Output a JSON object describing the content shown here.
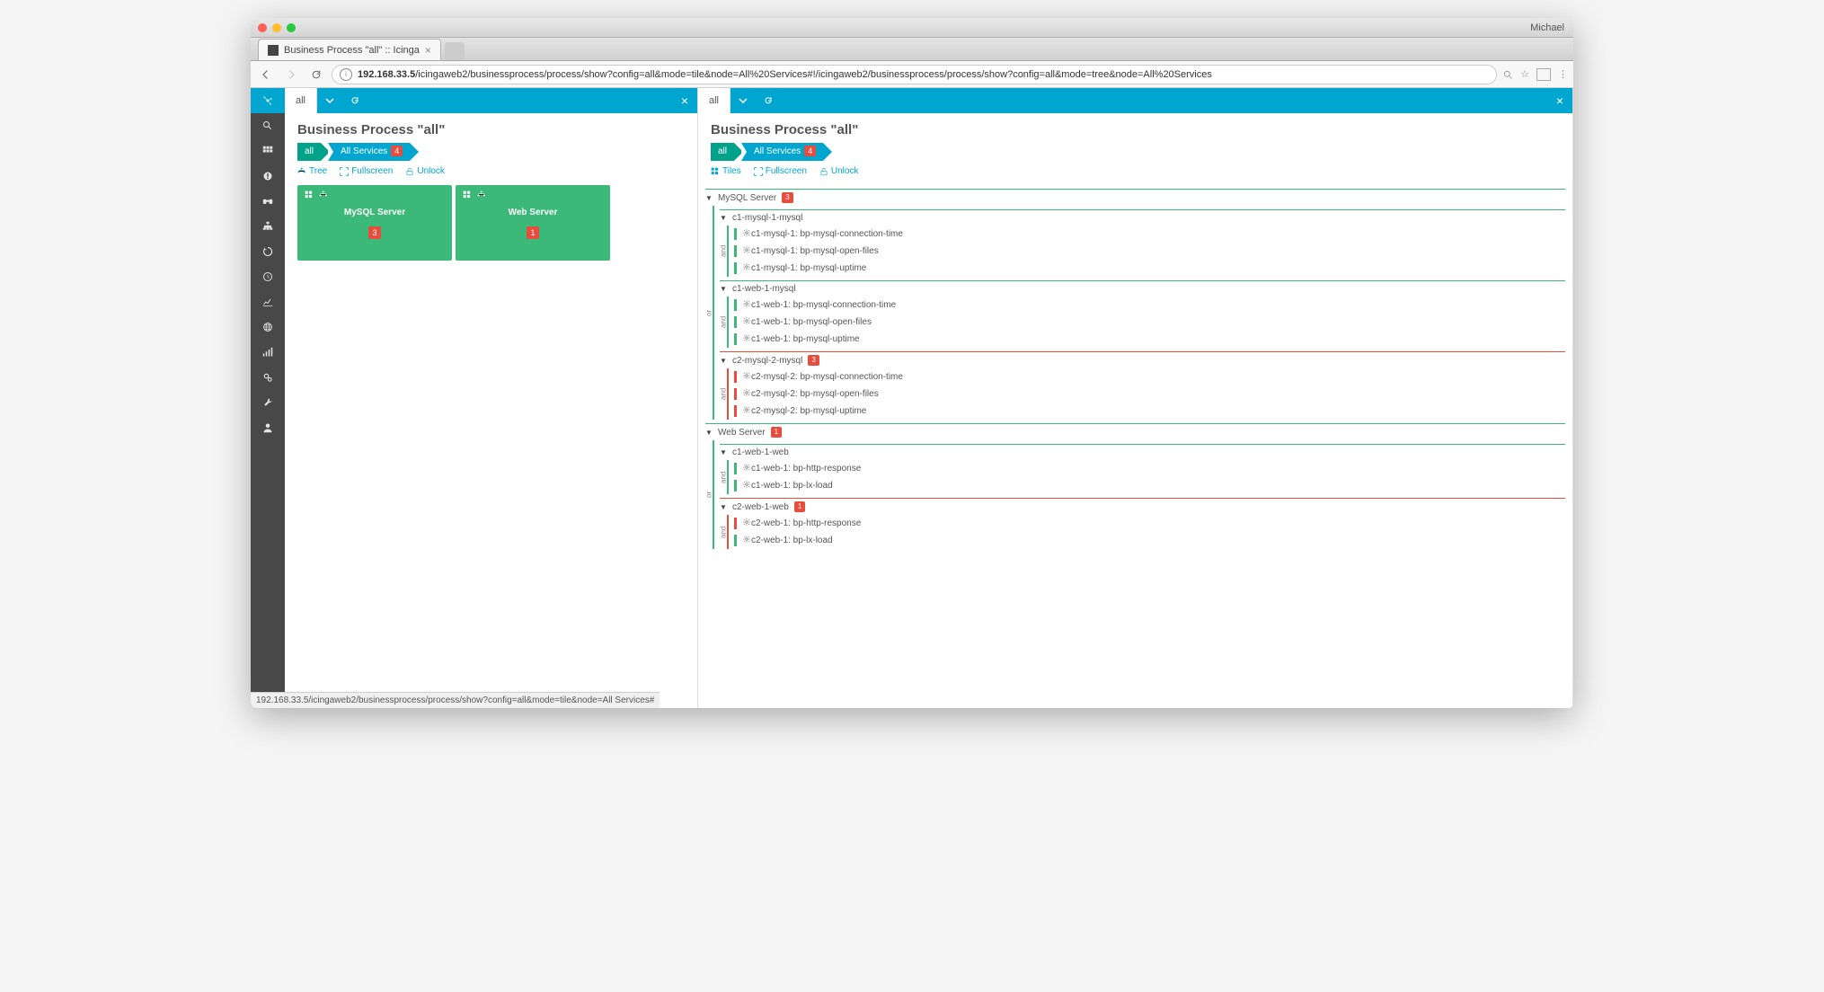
{
  "browser": {
    "user": "Michael",
    "tab_title": "Business Process \"all\" :: Icinga",
    "url_host": "192.168.33.5",
    "url_path": "/icingaweb2/businessprocess/process/show?config=all&mode=tile&node=All%20Services#!/icingaweb2/businessprocess/process/show?config=all&mode=tree&node=All%20Services",
    "status_text": "192.168.33.5/icingaweb2/businessprocess/process/show?config=all&mode=tile&node=All Services#"
  },
  "colors": {
    "brand": "#00a6cf",
    "ok": "#3cb878",
    "critical": "#e74c3c",
    "teal": "#00a38a",
    "sidebar": "#484848"
  },
  "panes": {
    "left": {
      "tab": "all",
      "title": "Business Process \"all\"",
      "crumbs": [
        {
          "label": "all",
          "style": "teal"
        },
        {
          "label": "All Services",
          "style": "blue",
          "badge": "4"
        }
      ],
      "actions": [
        {
          "icon": "tree",
          "label": "Tree"
        },
        {
          "icon": "fullscreen",
          "label": "Fullscreen"
        },
        {
          "icon": "unlock",
          "label": "Unlock"
        }
      ],
      "tiles": [
        {
          "name": "MySQL Server",
          "badge": "3",
          "status": "ok"
        },
        {
          "name": "Web Server",
          "badge": "1",
          "status": "ok"
        }
      ]
    },
    "right": {
      "tab": "all",
      "title": "Business Process \"all\"",
      "crumbs": [
        {
          "label": "all",
          "style": "teal"
        },
        {
          "label": "All Services",
          "style": "blue",
          "badge": "4"
        }
      ],
      "actions": [
        {
          "icon": "tiles",
          "label": "Tiles"
        },
        {
          "icon": "fullscreen",
          "label": "Fullscreen"
        },
        {
          "icon": "unlock",
          "label": "Unlock"
        }
      ],
      "tree": [
        {
          "label": "MySQL Server",
          "badge": "3",
          "status": "ok",
          "op": "or",
          "children": [
            {
              "label": "c1-mysql-1-mysql",
              "status": "ok",
              "op": "and",
              "services": [
                {
                  "label": "c1-mysql-1: bp-mysql-connection-time",
                  "status": "ok"
                },
                {
                  "label": "c1-mysql-1: bp-mysql-open-files",
                  "status": "ok"
                },
                {
                  "label": "c1-mysql-1: bp-mysql-uptime",
                  "status": "ok"
                }
              ]
            },
            {
              "label": "c1-web-1-mysql",
              "status": "ok",
              "op": "and",
              "services": [
                {
                  "label": "c1-web-1: bp-mysql-connection-time",
                  "status": "ok"
                },
                {
                  "label": "c1-web-1: bp-mysql-open-files",
                  "status": "ok"
                },
                {
                  "label": "c1-web-1: bp-mysql-uptime",
                  "status": "ok"
                }
              ]
            },
            {
              "label": "c2-mysql-2-mysql",
              "badge": "3",
              "status": "crit",
              "op": "and",
              "services": [
                {
                  "label": "c2-mysql-2: bp-mysql-connection-time",
                  "status": "crit"
                },
                {
                  "label": "c2-mysql-2: bp-mysql-open-files",
                  "status": "crit"
                },
                {
                  "label": "c2-mysql-2: bp-mysql-uptime",
                  "status": "crit"
                }
              ]
            }
          ]
        },
        {
          "label": "Web Server",
          "badge": "1",
          "status": "ok",
          "op": "or",
          "children": [
            {
              "label": "c1-web-1-web",
              "status": "ok",
              "op": "and",
              "services": [
                {
                  "label": "c1-web-1: bp-http-response",
                  "status": "ok"
                },
                {
                  "label": "c1-web-1: bp-lx-load",
                  "status": "ok"
                }
              ]
            },
            {
              "label": "c2-web-1-web",
              "badge": "1",
              "status": "crit",
              "op": "and",
              "services": [
                {
                  "label": "c2-web-1: bp-http-response",
                  "status": "crit"
                },
                {
                  "label": "c2-web-1: bp-lx-load",
                  "status": "ok"
                }
              ]
            }
          ]
        }
      ]
    }
  },
  "sidebar_icons": [
    "search",
    "grid",
    "alert",
    "binoculars",
    "sitemap",
    "spin",
    "history",
    "chart",
    "globe",
    "signal",
    "gears",
    "wrench",
    "user"
  ]
}
